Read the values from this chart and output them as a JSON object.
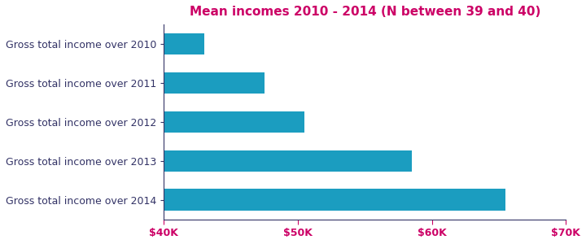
{
  "title": "Mean incomes 2010 - 2014 (N between 39 and 40)",
  "title_color": "#CC0066",
  "title_fontsize": 11,
  "categories": [
    "Gross total income over 2010",
    "Gross total income over 2011",
    "Gross total income over 2012",
    "Gross total income over 2013",
    "Gross total income over 2014"
  ],
  "values": [
    43000,
    47500,
    50500,
    58500,
    65500
  ],
  "bar_color": "#1B9DC0",
  "xlim": [
    40000,
    70000
  ],
  "xtick_values": [
    40000,
    50000,
    60000,
    70000
  ],
  "xtick_labels": [
    "$40K",
    "$50K",
    "$60K",
    "$70K"
  ],
  "tick_label_color": "#CC0066",
  "axis_label_color": "#333366",
  "label_fontsize": 9,
  "tick_fontsize": 9,
  "bar_height": 0.55,
  "background_color": "#ffffff",
  "spine_color": "#333366"
}
